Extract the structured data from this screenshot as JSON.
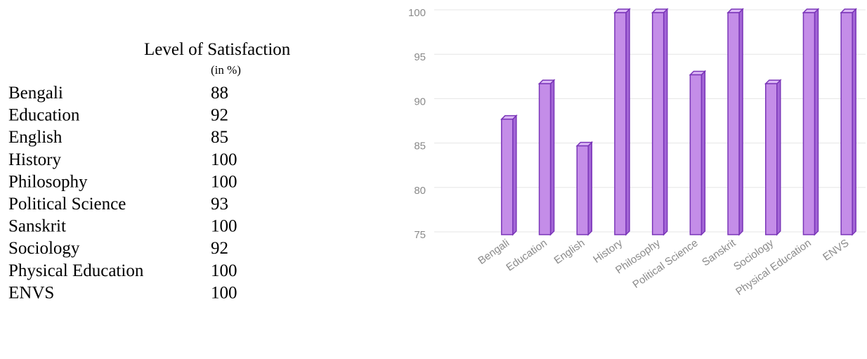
{
  "table": {
    "header": "Level of Satisfaction",
    "unit": "(in %)"
  },
  "chart_data": {
    "type": "bar3d",
    "categories": [
      "Bengali",
      "Education",
      "English",
      "History",
      "Philosophy",
      "Political Science",
      "Sanskrit",
      "Sociology",
      "Physical Education",
      "ENVS"
    ],
    "values": [
      88,
      92,
      85,
      100,
      100,
      93,
      100,
      92,
      100,
      100
    ],
    "color": "#c48de8",
    "ylim": [
      75,
      100
    ],
    "yticks": [
      75,
      80,
      85,
      90,
      95,
      100
    ],
    "grid": true
  }
}
